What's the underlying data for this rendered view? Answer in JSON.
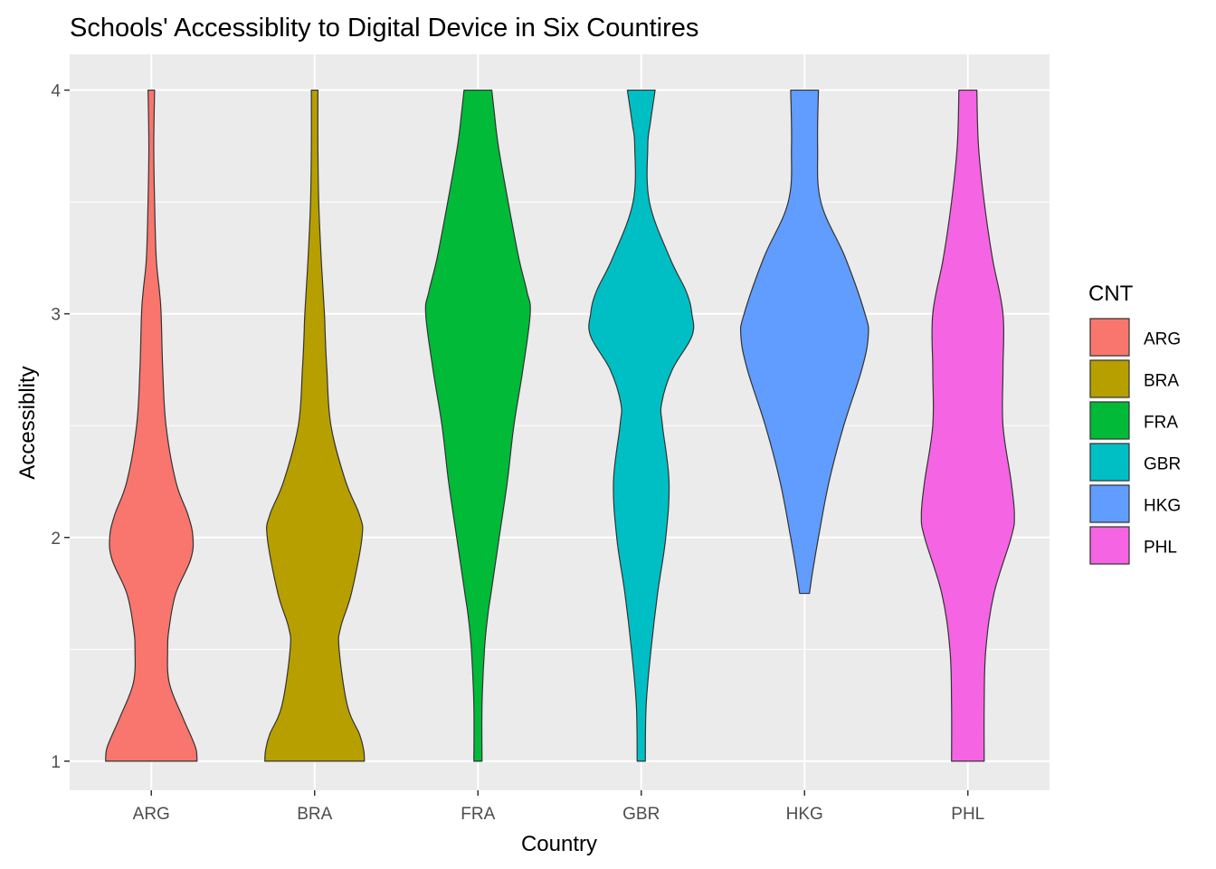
{
  "chart_data": {
    "type": "violin",
    "title": "Schools' Accessiblity to Digital Device in Six Countires",
    "xlabel": "Country",
    "ylabel": "Accessiblity",
    "ylim": [
      0.87,
      4.16
    ],
    "yticks": [
      1,
      2,
      3,
      4
    ],
    "grid": true,
    "legend": {
      "title": "CNT",
      "position": "right"
    },
    "categories": [
      "ARG",
      "BRA",
      "FRA",
      "GBR",
      "HKG",
      "PHL"
    ],
    "series": [
      {
        "name": "ARG",
        "color": "#F8766D",
        "y_min": 1,
        "y_max": 4,
        "profile": [
          [
            1.0,
            0.56
          ],
          [
            1.05,
            0.55
          ],
          [
            1.1,
            0.5
          ],
          [
            1.2,
            0.38
          ],
          [
            1.35,
            0.22
          ],
          [
            1.5,
            0.2
          ],
          [
            1.6,
            0.22
          ],
          [
            1.75,
            0.3
          ],
          [
            1.9,
            0.48
          ],
          [
            2.0,
            0.51
          ],
          [
            2.1,
            0.45
          ],
          [
            2.25,
            0.3
          ],
          [
            2.5,
            0.18
          ],
          [
            2.75,
            0.14
          ],
          [
            3.0,
            0.12
          ],
          [
            3.1,
            0.1
          ],
          [
            3.25,
            0.06
          ],
          [
            3.5,
            0.04
          ],
          [
            3.75,
            0.03
          ],
          [
            4.0,
            0.04
          ]
        ]
      },
      {
        "name": "BRA",
        "color": "#B79F00",
        "y_min": 1,
        "y_max": 4,
        "profile": [
          [
            1.0,
            0.61
          ],
          [
            1.05,
            0.6
          ],
          [
            1.12,
            0.55
          ],
          [
            1.25,
            0.4
          ],
          [
            1.5,
            0.3
          ],
          [
            1.6,
            0.32
          ],
          [
            1.75,
            0.45
          ],
          [
            2.0,
            0.58
          ],
          [
            2.1,
            0.55
          ],
          [
            2.25,
            0.38
          ],
          [
            2.5,
            0.2
          ],
          [
            2.75,
            0.15
          ],
          [
            2.9,
            0.13
          ],
          [
            3.0,
            0.12
          ],
          [
            3.25,
            0.08
          ],
          [
            3.5,
            0.05
          ],
          [
            3.75,
            0.04
          ],
          [
            4.0,
            0.04
          ]
        ]
      },
      {
        "name": "FRA",
        "color": "#00BA38",
        "y_min": 1,
        "y_max": 4,
        "profile": [
          [
            1.0,
            0.05
          ],
          [
            1.25,
            0.05
          ],
          [
            1.5,
            0.08
          ],
          [
            1.65,
            0.12
          ],
          [
            1.75,
            0.16
          ],
          [
            2.0,
            0.26
          ],
          [
            2.25,
            0.36
          ],
          [
            2.5,
            0.44
          ],
          [
            2.75,
            0.55
          ],
          [
            3.0,
            0.64
          ],
          [
            3.1,
            0.6
          ],
          [
            3.25,
            0.5
          ],
          [
            3.5,
            0.37
          ],
          [
            3.75,
            0.25
          ],
          [
            3.9,
            0.2
          ],
          [
            4.0,
            0.17
          ]
        ]
      },
      {
        "name": "GBR",
        "color": "#00BFC4",
        "y_min": 1,
        "y_max": 4,
        "profile": [
          [
            1.0,
            0.05
          ],
          [
            1.25,
            0.06
          ],
          [
            1.5,
            0.12
          ],
          [
            1.75,
            0.2
          ],
          [
            2.0,
            0.3
          ],
          [
            2.25,
            0.34
          ],
          [
            2.5,
            0.26
          ],
          [
            2.6,
            0.25
          ],
          [
            2.75,
            0.38
          ],
          [
            2.9,
            0.62
          ],
          [
            3.0,
            0.62
          ],
          [
            3.1,
            0.55
          ],
          [
            3.25,
            0.35
          ],
          [
            3.5,
            0.1
          ],
          [
            3.75,
            0.08
          ],
          [
            3.85,
            0.11
          ],
          [
            4.0,
            0.17
          ]
        ]
      },
      {
        "name": "HKG",
        "color": "#619CFF",
        "y_min": 1.75,
        "y_max": 4,
        "profile": [
          [
            1.75,
            0.06
          ],
          [
            1.85,
            0.1
          ],
          [
            2.0,
            0.17
          ],
          [
            2.25,
            0.3
          ],
          [
            2.5,
            0.48
          ],
          [
            2.75,
            0.7
          ],
          [
            2.9,
            0.78
          ],
          [
            3.0,
            0.74
          ],
          [
            3.25,
            0.5
          ],
          [
            3.5,
            0.2
          ],
          [
            3.75,
            0.16
          ],
          [
            4.0,
            0.17
          ]
        ]
      },
      {
        "name": "PHL",
        "color": "#F564E3",
        "y_min": 1,
        "y_max": 4,
        "profile": [
          [
            1.0,
            0.2
          ],
          [
            1.25,
            0.2
          ],
          [
            1.5,
            0.22
          ],
          [
            1.75,
            0.32
          ],
          [
            2.0,
            0.53
          ],
          [
            2.1,
            0.57
          ],
          [
            2.25,
            0.53
          ],
          [
            2.5,
            0.43
          ],
          [
            2.75,
            0.43
          ],
          [
            3.0,
            0.43
          ],
          [
            3.25,
            0.3
          ],
          [
            3.5,
            0.2
          ],
          [
            3.75,
            0.13
          ],
          [
            4.0,
            0.11
          ]
        ]
      }
    ]
  }
}
